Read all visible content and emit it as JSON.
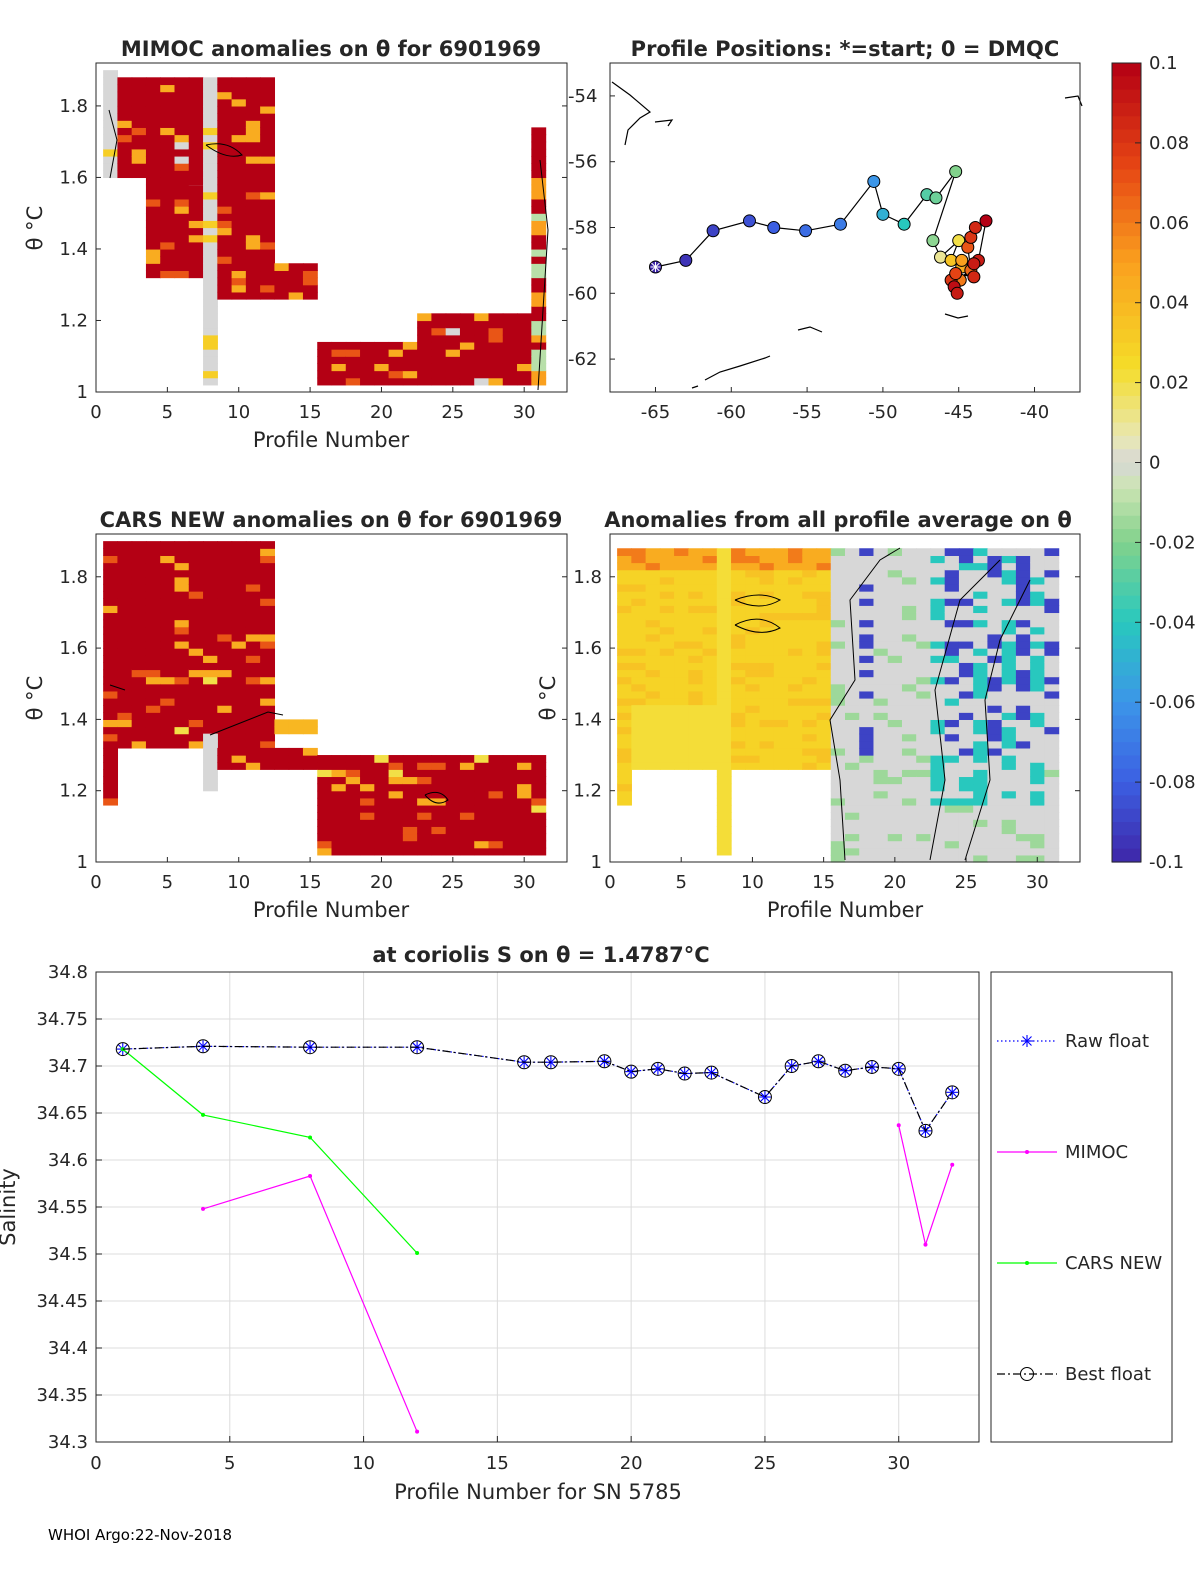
{
  "footer": "WHOI Argo:22-Nov-2018",
  "colorbar": {
    "ticks": [
      "0.1",
      "0.08",
      "0.06",
      "0.04",
      "0.02",
      "0",
      "-0.02",
      "-0.04",
      "-0.06",
      "-0.08",
      "-0.1"
    ],
    "range": [
      -0.1,
      0.1
    ]
  },
  "chart_data": [
    {
      "id": "mimoc",
      "type": "heatmap",
      "title": "MIMOC anomalies on θ  for 6901969",
      "xlabel": "Profile Number",
      "ylabel": "θ °C",
      "xticks": [
        "0",
        "5",
        "10",
        "15",
        "20",
        "25",
        "30"
      ],
      "yticks": [
        "1",
        "1.2",
        "1.4",
        "1.6",
        "1.8"
      ],
      "xlim": [
        0,
        33
      ],
      "ylim": [
        1,
        1.92
      ]
    },
    {
      "id": "positions",
      "type": "scatter",
      "title": "Profile Positions: *=start; 0 = DMQC",
      "xticks": [
        "-65",
        "-60",
        "-55",
        "-50",
        "-45",
        "-40"
      ],
      "yticks": [
        "-54",
        "-56",
        "-58",
        "-60",
        "-62"
      ],
      "xlim": [
        -68,
        -37
      ],
      "ylim": [
        -63,
        -53
      ],
      "points": [
        {
          "lon": -65.0,
          "lat": -59.2,
          "anom": -0.1
        },
        {
          "lon": -63.0,
          "lat": -59.0,
          "anom": -0.095
        },
        {
          "lon": -61.2,
          "lat": -58.1,
          "anom": -0.09
        },
        {
          "lon": -58.8,
          "lat": -57.8,
          "anom": -0.085
        },
        {
          "lon": -57.2,
          "lat": -58.0,
          "anom": -0.08
        },
        {
          "lon": -55.1,
          "lat": -58.1,
          "anom": -0.075
        },
        {
          "lon": -52.8,
          "lat": -57.9,
          "anom": -0.07
        },
        {
          "lon": -50.6,
          "lat": -56.6,
          "anom": -0.06
        },
        {
          "lon": -50.0,
          "lat": -57.6,
          "anom": -0.05
        },
        {
          "lon": -48.6,
          "lat": -57.9,
          "anom": -0.04
        },
        {
          "lon": -47.1,
          "lat": -57.0,
          "anom": -0.03
        },
        {
          "lon": -46.5,
          "lat": -57.1,
          "anom": -0.025
        },
        {
          "lon": -45.2,
          "lat": -56.3,
          "anom": -0.02
        },
        {
          "lon": -46.7,
          "lat": -58.4,
          "anom": -0.018
        },
        {
          "lon": -46.2,
          "lat": -58.9,
          "anom": 0.01
        },
        {
          "lon": -45.0,
          "lat": -58.4,
          "anom": 0.02
        },
        {
          "lon": -45.5,
          "lat": -59.0,
          "anom": 0.035
        },
        {
          "lon": -44.8,
          "lat": -59.2,
          "anom": 0.045
        },
        {
          "lon": -44.9,
          "lat": -59.6,
          "anom": 0.06
        },
        {
          "lon": -44.2,
          "lat": -59.3,
          "anom": 0.065
        },
        {
          "lon": -44.4,
          "lat": -58.6,
          "anom": 0.07
        },
        {
          "lon": -44.2,
          "lat": -58.3,
          "anom": 0.08
        },
        {
          "lon": -43.9,
          "lat": -58.0,
          "anom": 0.085
        },
        {
          "lon": -43.2,
          "lat": -57.8,
          "anom": 0.1
        },
        {
          "lon": -43.7,
          "lat": -59.0,
          "anom": 0.09
        },
        {
          "lon": -45.5,
          "lat": -59.6,
          "anom": 0.08
        },
        {
          "lon": -45.2,
          "lat": -59.4,
          "anom": 0.075
        },
        {
          "lon": -44.0,
          "lat": -59.5,
          "anom": 0.085
        },
        {
          "lon": -44.8,
          "lat": -59.0,
          "anom": 0.05
        },
        {
          "lon": -44.0,
          "lat": -59.1,
          "anom": 0.09
        },
        {
          "lon": -45.3,
          "lat": -59.8,
          "anom": 0.095
        },
        {
          "lon": -45.1,
          "lat": -60.0,
          "anom": 0.09
        }
      ]
    },
    {
      "id": "cars",
      "type": "heatmap",
      "title": "CARS NEW anomalies on θ for 6901969",
      "xlabel": "Profile Number",
      "ylabel": "θ °C",
      "xticks": [
        "0",
        "5",
        "10",
        "15",
        "20",
        "25",
        "30"
      ],
      "yticks": [
        "1",
        "1.2",
        "1.4",
        "1.6",
        "1.8"
      ],
      "xlim": [
        0,
        33
      ],
      "ylim": [
        1,
        1.92
      ]
    },
    {
      "id": "average",
      "type": "heatmap",
      "title": "Anomalies from all profile average on θ",
      "xlabel": "Profile Number",
      "ylabel": "θ °C",
      "xticks": [
        "0",
        "5",
        "10",
        "15",
        "20",
        "25",
        "30"
      ],
      "yticks": [
        "1",
        "1.2",
        "1.4",
        "1.6",
        "1.8"
      ],
      "xlim": [
        0,
        33
      ],
      "ylim": [
        1,
        1.92
      ]
    },
    {
      "id": "salinity",
      "type": "line",
      "title": "at coriolis S on θ = 1.4787°C",
      "xlabel": "Profile Number for SN 5785",
      "ylabel": "Salinity",
      "xlim": [
        0,
        33
      ],
      "ylim": [
        34.3,
        34.8
      ],
      "xticks": [
        "0",
        "5",
        "10",
        "15",
        "20",
        "25",
        "30"
      ],
      "yticks": [
        "34.3",
        "34.35",
        "34.4",
        "34.45",
        "34.5",
        "34.55",
        "34.6",
        "34.65",
        "34.7",
        "34.75",
        "34.8"
      ],
      "grid": true,
      "legend_position": "right",
      "series": [
        {
          "name": "Raw float",
          "color": "#0000ff",
          "style": "dotted",
          "marker": "asterisk",
          "x": [
            1,
            4,
            8,
            12,
            16,
            17,
            19,
            20,
            21,
            22,
            23,
            25,
            26,
            27,
            28,
            29,
            30,
            31,
            32
          ],
          "y": [
            34.718,
            34.721,
            34.72,
            34.72,
            34.704,
            34.704,
            34.705,
            34.694,
            34.697,
            34.692,
            34.693,
            34.667,
            34.7,
            34.705,
            34.695,
            34.699,
            34.697,
            34.631,
            34.672
          ]
        },
        {
          "name": "MIMOC",
          "color": "#ff00ff",
          "style": "solid",
          "marker": "dot",
          "segments": [
            {
              "x": [
                4,
                8,
                12
              ],
              "y": [
                34.548,
                34.583,
                34.311
              ]
            },
            {
              "x": [
                30,
                31,
                32
              ],
              "y": [
                34.637,
                34.51,
                34.595
              ]
            }
          ]
        },
        {
          "name": "CARS NEW",
          "color": "#00ff00",
          "style": "solid",
          "marker": "dot",
          "segments": [
            {
              "x": [
                1,
                4,
                8,
                12
              ],
              "y": [
                34.718,
                34.648,
                34.624,
                34.501
              ]
            }
          ]
        },
        {
          "name": "Best float",
          "color": "#000000",
          "style": "dashdot",
          "marker": "circle",
          "x": [
            1,
            4,
            8,
            12,
            16,
            17,
            19,
            20,
            21,
            22,
            23,
            25,
            26,
            27,
            28,
            29,
            30,
            31,
            32
          ],
          "y": [
            34.718,
            34.721,
            34.72,
            34.72,
            34.704,
            34.704,
            34.705,
            34.694,
            34.697,
            34.692,
            34.693,
            34.667,
            34.7,
            34.705,
            34.695,
            34.699,
            34.697,
            34.631,
            34.672
          ]
        }
      ]
    }
  ]
}
